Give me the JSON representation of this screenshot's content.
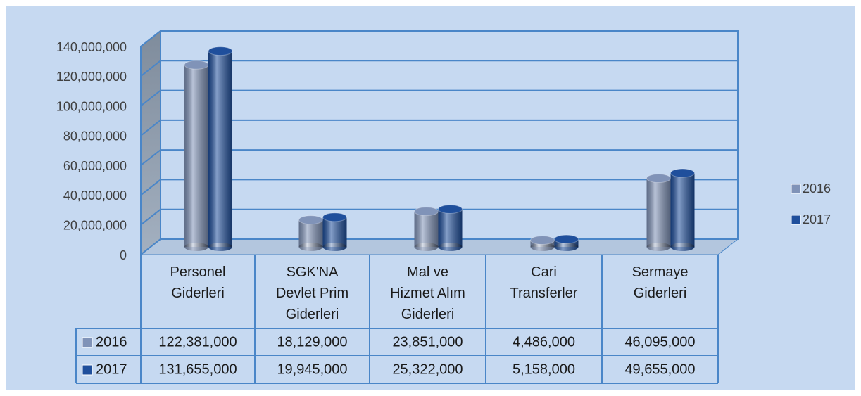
{
  "chart_data": {
    "type": "bar",
    "categories": [
      "Personel Giderleri",
      "SGK'NA Devlet Prim Giderleri",
      "Mal ve Hizmet Alım Giderleri",
      "Cari Transferler",
      "Sermaye Giderleri"
    ],
    "series": [
      {
        "name": "2016",
        "color": "#8093b8",
        "values": [
          122381000,
          18129000,
          23851000,
          4486000,
          46095000
        ],
        "value_labels": [
          "122,381,000",
          "18,129,000",
          "23,851,000",
          "4,486,000",
          "46,095,000"
        ]
      },
      {
        "name": "2017",
        "color": "#1f4f9c",
        "values": [
          131655000,
          19945000,
          25322000,
          5158000,
          49655000
        ],
        "value_labels": [
          "131,655,000",
          "19,945,000",
          "25,322,000",
          "5,158,000",
          "49,655,000"
        ]
      }
    ],
    "ylim": [
      0,
      140000000
    ],
    "yticks": [
      0,
      {
        "value": 20000000,
        "label": "20,000,000"
      },
      {
        "value": 40000000,
        "label": "40,000,000"
      },
      {
        "value": 60000000,
        "label": "60,000,000"
      },
      {
        "value": 80000000,
        "label": "80,000,000"
      },
      {
        "value": 100000000,
        "label": "100,000,000"
      },
      {
        "value": 120000000,
        "label": "120,000,000"
      },
      {
        "value": 140000000,
        "label": "140,000,000"
      }
    ],
    "grid": true,
    "legend": "right"
  }
}
